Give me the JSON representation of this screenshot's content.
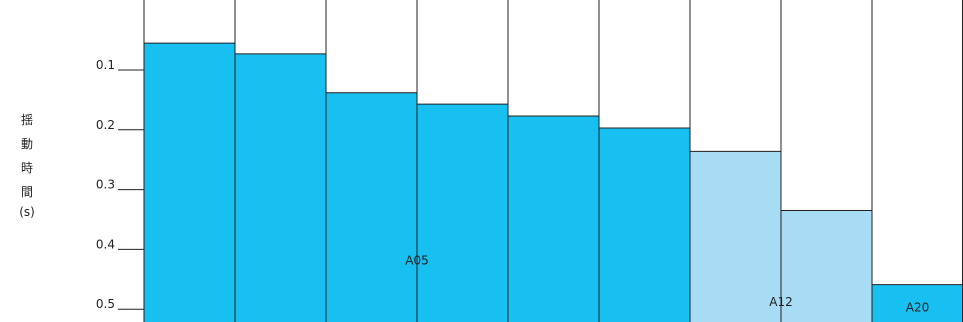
{
  "chart_data": {
    "type": "bar",
    "orientation": "vertical",
    "y_axis_inverted": true,
    "ylabel_chars": [
      "揺",
      "動",
      "時",
      "間"
    ],
    "ylabel_unit": "(s)",
    "yticks": [
      0.1,
      0.2,
      0.3,
      0.4,
      0.5
    ],
    "ytick_labels": [
      "0.1",
      "0.2",
      "0.3",
      "0.4",
      "0.5"
    ],
    "ylim": [
      0.0,
      0.52
    ],
    "values": [
      0.055,
      0.073,
      0.138,
      0.157,
      0.177,
      0.197,
      0.236,
      0.335,
      0.459
    ],
    "bar_colors": [
      "#17c0f0",
      "#17c0f0",
      "#17c0f0",
      "#17c0f0",
      "#17c0f0",
      "#17c0f0",
      "#a8dcf5",
      "#a8dcf5",
      "#17c0f0"
    ],
    "group_labels": [
      {
        "text": "A05",
        "bar_index": 3,
        "value": 0.425
      },
      {
        "text": "A12",
        "bar_index": 7,
        "value": 0.495
      },
      {
        "text": "A20",
        "bar_index": 8,
        "value": 0.504
      }
    ]
  }
}
